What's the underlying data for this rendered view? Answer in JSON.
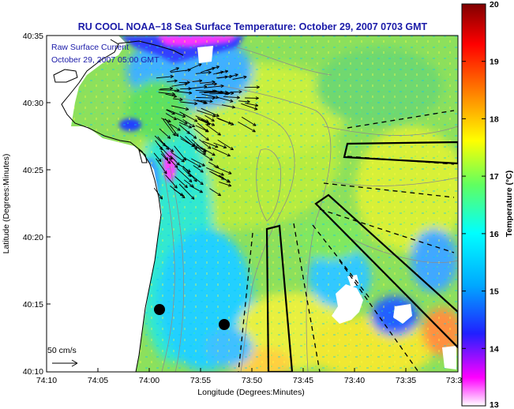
{
  "title": "RU COOL  NOAA−18  Sea Surface Temperature:  October 29, 2007 0703 GMT",
  "legend": {
    "line1": "Raw Surface Current",
    "line2": "October 29, 2007 05:00 GMT"
  },
  "scale_label": "50 cm/s",
  "x_axis": {
    "label": "Longitude (Degrees:Minutes)",
    "ticks": [
      "74:10",
      "74:05",
      "74:00",
      "73:55",
      "73:50",
      "73:45",
      "73:40",
      "73:35",
      "73:3"
    ]
  },
  "y_axis": {
    "label": "Latitude (Degrees:Minutes)",
    "ticks": [
      "40:35",
      "40:30",
      "40:25",
      "40:20",
      "40:15",
      "40:10"
    ]
  },
  "colorbar": {
    "label": "Temperature (°C)",
    "ticks": [
      "20",
      "19",
      "18",
      "17",
      "16",
      "15",
      "14",
      "13"
    ],
    "min": 13,
    "max": 20,
    "colors": [
      "#ffffff",
      "#ff00ff",
      "#2020ff",
      "#00a8ff",
      "#00ffff",
      "#60ff60",
      "#ffff00",
      "#ff8000",
      "#ff0000",
      "#800000"
    ]
  },
  "colors": {
    "land": "#ffffff",
    "coastline": "#000000",
    "bathymetry": "#8c8c8c",
    "title": "#1a1aa8"
  }
}
